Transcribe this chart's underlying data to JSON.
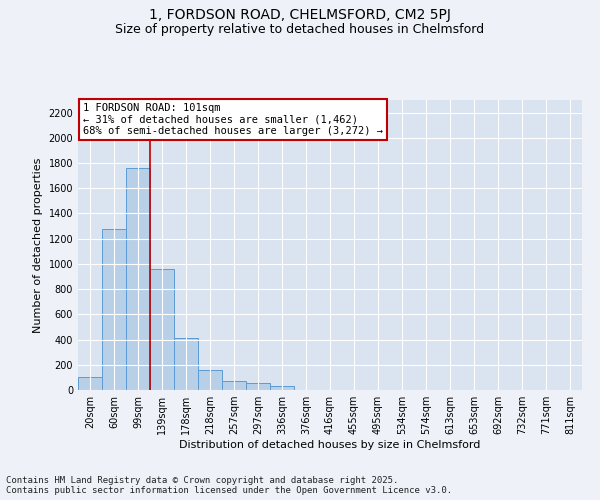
{
  "title_line1": "1, FORDSON ROAD, CHELMSFORD, CM2 5PJ",
  "title_line2": "Size of property relative to detached houses in Chelmsford",
  "xlabel": "Distribution of detached houses by size in Chelmsford",
  "ylabel": "Number of detached properties",
  "categories": [
    "20sqm",
    "60sqm",
    "99sqm",
    "139sqm",
    "178sqm",
    "218sqm",
    "257sqm",
    "297sqm",
    "336sqm",
    "376sqm",
    "416sqm",
    "455sqm",
    "495sqm",
    "534sqm",
    "574sqm",
    "613sqm",
    "653sqm",
    "692sqm",
    "732sqm",
    "771sqm",
    "811sqm"
  ],
  "values": [
    100,
    1280,
    1760,
    960,
    415,
    160,
    75,
    55,
    35,
    0,
    0,
    0,
    0,
    0,
    0,
    0,
    0,
    0,
    0,
    0,
    0
  ],
  "bar_color": "#b8cfe8",
  "bar_edge_color": "#5b9bd5",
  "ylim": [
    0,
    2300
  ],
  "yticks": [
    0,
    200,
    400,
    600,
    800,
    1000,
    1200,
    1400,
    1600,
    1800,
    2000,
    2200
  ],
  "vline_x_index": 2,
  "vline_color": "#c00000",
  "annotation_text": "1 FORDSON ROAD: 101sqm\n← 31% of detached houses are smaller (1,462)\n68% of semi-detached houses are larger (3,272) →",
  "annotation_box_color": "#c00000",
  "footer_text": "Contains HM Land Registry data © Crown copyright and database right 2025.\nContains public sector information licensed under the Open Government Licence v3.0.",
  "bg_color": "#eef2f8",
  "plot_bg_color": "#d9e4f0",
  "grid_color": "#ffffff",
  "title_fontsize": 10,
  "subtitle_fontsize": 9,
  "axis_label_fontsize": 8,
  "tick_fontsize": 7,
  "footer_fontsize": 6.5,
  "annotation_fontsize": 7.5
}
